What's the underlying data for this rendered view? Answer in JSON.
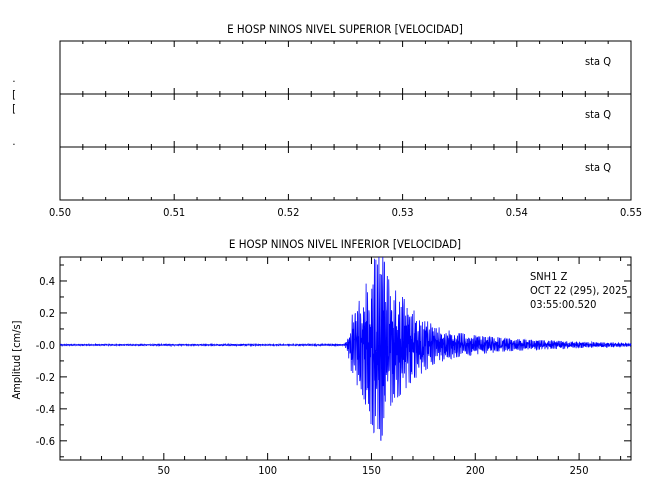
{
  "chart_data": [
    {
      "type": "line",
      "title": "E HOSP NINOS NIVEL SUPERIOR [VELOCIDAD]",
      "xlim": [
        0.5,
        0.55
      ],
      "xticks": [
        "0.50",
        "0.51",
        "0.52",
        "0.53",
        "0.54",
        "0.55"
      ],
      "panels": [
        {
          "label": "sta  Q"
        },
        {
          "label": "sta  Q"
        },
        {
          "label": "sta  Q"
        }
      ],
      "left_marks": [
        "·",
        "[",
        "[",
        "·"
      ]
    },
    {
      "type": "line",
      "title": "E HOSP NINOS NIVEL INFERIOR [VELOCIDAD]",
      "ylabel": "Amplitud  [cm/s]",
      "xlim": [
        0,
        275
      ],
      "ylim": [
        -0.72,
        0.55
      ],
      "xticks": [
        "50",
        "100",
        "150",
        "200",
        "250"
      ],
      "xtick_values": [
        50,
        100,
        150,
        200,
        250
      ],
      "yticks": [
        "0.4",
        "0.2",
        "-0.0",
        "-0.2",
        "-0.4",
        "-0.6"
      ],
      "ytick_values": [
        0.4,
        0.2,
        0.0,
        -0.2,
        -0.4,
        -0.6
      ],
      "series_color": "#0000ff",
      "annotation": {
        "station": "SNH1   Z",
        "date": "OCT 22 (295), 2025",
        "time": "03:55:00.520"
      },
      "envelope": [
        [
          0,
          0.004
        ],
        [
          137,
          0.005
        ],
        [
          138.5,
          0.04
        ],
        [
          140,
          0.17
        ],
        [
          143,
          0.25
        ],
        [
          146,
          0.32
        ],
        [
          149,
          0.46
        ],
        [
          151,
          0.55
        ],
        [
          153,
          0.52
        ],
        [
          155,
          0.62
        ],
        [
          157,
          0.45
        ],
        [
          160,
          0.36
        ],
        [
          165,
          0.3
        ],
        [
          170,
          0.22
        ],
        [
          180,
          0.12
        ],
        [
          190,
          0.08
        ],
        [
          200,
          0.06
        ],
        [
          215,
          0.04
        ],
        [
          230,
          0.03
        ],
        [
          250,
          0.02
        ],
        [
          275,
          0.01
        ]
      ]
    }
  ]
}
